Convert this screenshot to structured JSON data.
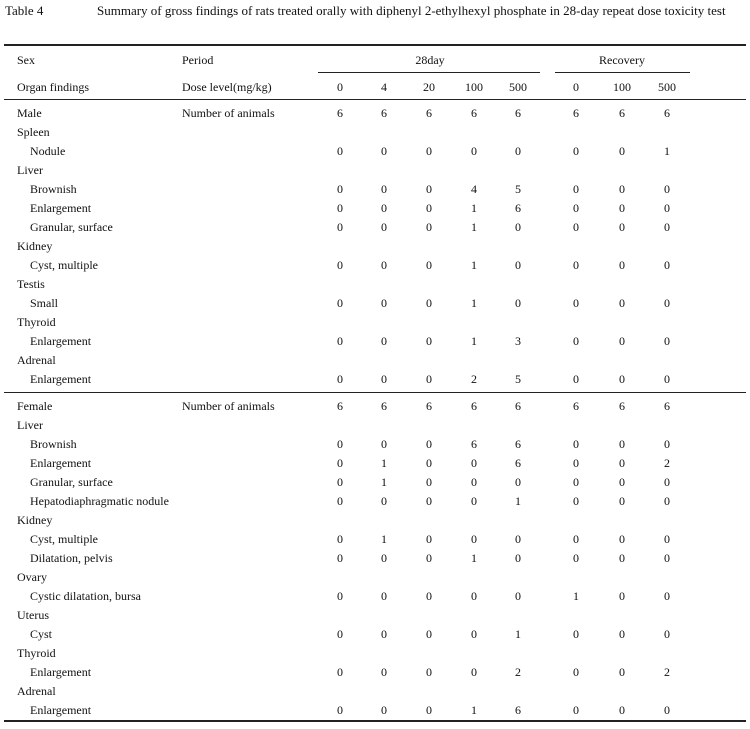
{
  "title": {
    "number": "Table 4",
    "caption": "Summary of gross findings of rats treated orally with diphenyl 2-ethylhexyl phosphate in 28-day repeat dose toxicity test"
  },
  "header": {
    "sex": "Sex",
    "period": "Period",
    "group_main": "28day",
    "group_recovery": "Recovery",
    "organ_findings": "Organ findings",
    "dose_level": "Dose level(mg/kg)",
    "doses_main": [
      0,
      4,
      20,
      100,
      500
    ],
    "doses_recovery": [
      0,
      100,
      500
    ]
  },
  "sections": [
    {
      "sex": "Male",
      "animals_label": "Number of animals",
      "animals": [
        6,
        6,
        6,
        6,
        6,
        6,
        6,
        6
      ],
      "organs": [
        {
          "organ": "Spleen",
          "findings": [
            {
              "name": "Nodule",
              "values": [
                0,
                0,
                0,
                0,
                0,
                0,
                0,
                1
              ]
            }
          ]
        },
        {
          "organ": "Liver",
          "findings": [
            {
              "name": "Brownish",
              "values": [
                0,
                0,
                0,
                4,
                5,
                0,
                0,
                0
              ]
            },
            {
              "name": "Enlargement",
              "values": [
                0,
                0,
                0,
                1,
                6,
                0,
                0,
                0
              ]
            },
            {
              "name": "Granular, surface",
              "values": [
                0,
                0,
                0,
                1,
                0,
                0,
                0,
                0
              ]
            }
          ]
        },
        {
          "organ": "Kidney",
          "findings": [
            {
              "name": "Cyst, multiple",
              "values": [
                0,
                0,
                0,
                1,
                0,
                0,
                0,
                0
              ]
            }
          ]
        },
        {
          "organ": "Testis",
          "findings": [
            {
              "name": "Small",
              "values": [
                0,
                0,
                0,
                1,
                0,
                0,
                0,
                0
              ]
            }
          ]
        },
        {
          "organ": "Thyroid",
          "findings": [
            {
              "name": "Enlargement",
              "values": [
                0,
                0,
                0,
                1,
                3,
                0,
                0,
                0
              ]
            }
          ]
        },
        {
          "organ": "Adrenal",
          "findings": [
            {
              "name": "Enlargement",
              "values": [
                0,
                0,
                0,
                2,
                5,
                0,
                0,
                0
              ]
            }
          ]
        }
      ]
    },
    {
      "sex": "Female",
      "animals_label": "Number of animals",
      "animals": [
        6,
        6,
        6,
        6,
        6,
        6,
        6,
        6
      ],
      "organs": [
        {
          "organ": "Liver",
          "findings": [
            {
              "name": "Brownish",
              "values": [
                0,
                0,
                0,
                6,
                6,
                0,
                0,
                0
              ]
            },
            {
              "name": "Enlargement",
              "values": [
                0,
                1,
                0,
                0,
                6,
                0,
                0,
                2
              ]
            },
            {
              "name": "Granular, surface",
              "values": [
                0,
                1,
                0,
                0,
                0,
                0,
                0,
                0
              ]
            },
            {
              "name": "Hepatodiaphragmatic nodule",
              "values": [
                0,
                0,
                0,
                0,
                1,
                0,
                0,
                0
              ]
            }
          ]
        },
        {
          "organ": "Kidney",
          "findings": [
            {
              "name": "Cyst, multiple",
              "values": [
                0,
                1,
                0,
                0,
                0,
                0,
                0,
                0
              ]
            },
            {
              "name": "Dilatation, pelvis",
              "values": [
                0,
                0,
                0,
                1,
                0,
                0,
                0,
                0
              ]
            }
          ]
        },
        {
          "organ": "Ovary",
          "findings": [
            {
              "name": "Cystic dilatation, bursa",
              "values": [
                0,
                0,
                0,
                0,
                0,
                1,
                0,
                0
              ]
            }
          ]
        },
        {
          "organ": "Uterus",
          "findings": [
            {
              "name": "Cyst",
              "values": [
                0,
                0,
                0,
                0,
                1,
                0,
                0,
                0
              ]
            }
          ]
        },
        {
          "organ": "Thyroid",
          "findings": [
            {
              "name": "Enlargement",
              "values": [
                0,
                0,
                0,
                0,
                2,
                0,
                0,
                2
              ]
            }
          ]
        },
        {
          "organ": "Adrenal",
          "findings": [
            {
              "name": "Enlargement",
              "values": [
                0,
                0,
                0,
                1,
                6,
                0,
                0,
                0
              ]
            }
          ]
        }
      ]
    }
  ]
}
